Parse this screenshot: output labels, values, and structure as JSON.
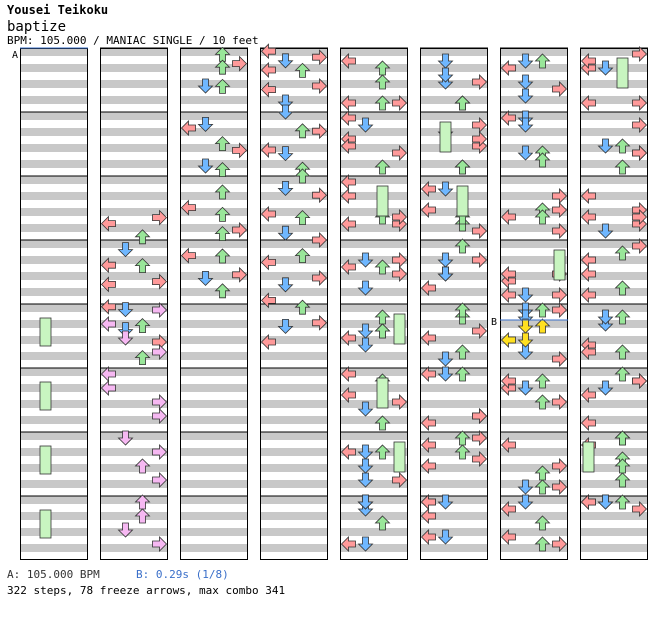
{
  "header": {
    "artist": "Yousei Teikoku",
    "title": "baptize",
    "info": "BPM: 105.000 / MANIAC SINGLE / 10 feet"
  },
  "markers": {
    "a": "A",
    "b": "B"
  },
  "footer": {
    "bpm_a": "A: 105.000 BPM",
    "bpm_b": "B: 0.29s (1/8)",
    "summary": "322 steps, 78 freeze arrows, max combo 341"
  },
  "colors": {
    "left": "#ff9a9a",
    "down": "#6fb7ff",
    "up": "#99e699",
    "right": "#ff9a9a",
    "freeze_body": "#c8f5c0",
    "shock": "#ffe020",
    "pink": "#f6b8f2",
    "stripe": "#c8c8c8",
    "bpm_b": "#3a6fc9"
  },
  "chart_data": {
    "type": "step-chart",
    "lanes": [
      "left",
      "down",
      "up",
      "right"
    ],
    "columns": 8,
    "measures_per_column": 8,
    "notes": [
      [
        1,
        0,
        5.3,
        3
      ],
      [
        1,
        1,
        5.3,
        0
      ],
      [
        1,
        0,
        5.9,
        2
      ],
      [
        1,
        0,
        6.3,
        1
      ],
      [
        1,
        1,
        6.6,
        0
      ],
      [
        1,
        0,
        6.8,
        2
      ],
      [
        1,
        1,
        7.2,
        0
      ],
      [
        1,
        0,
        7.3,
        3
      ],
      [
        1,
        2,
        7.8,
        1
      ],
      [
        1,
        1,
        7.9,
        0
      ],
      [
        1,
        2,
        8.3,
        2
      ],
      [
        1,
        0,
        8.8,
        1
      ],
      [
        1,
        1,
        9.0,
        3
      ],
      [
        1,
        2,
        9.3,
        2
      ],
      [
        2,
        0,
        0.2,
        2
      ],
      [
        2,
        1,
        0.3,
        3
      ],
      [
        2,
        0,
        0.6,
        2
      ],
      [
        2,
        1,
        1.0,
        1
      ],
      [
        2,
        0,
        1.2,
        2
      ],
      [
        2,
        1,
        2.2,
        1
      ],
      [
        2,
        0,
        2.5,
        0
      ],
      [
        2,
        1,
        2.8,
        2
      ],
      [
        2,
        0,
        3.2,
        3
      ],
      [
        2,
        1,
        3.5,
        1
      ],
      [
        2,
        0,
        3.8,
        2
      ],
      [
        2,
        0,
        4.5,
        2
      ],
      [
        2,
        1,
        4.8,
        0
      ],
      [
        2,
        0,
        5.2,
        2
      ],
      [
        2,
        1,
        5.5,
        3
      ],
      [
        2,
        0,
        5.8,
        2
      ],
      [
        2,
        1,
        6.3,
        0
      ],
      [
        2,
        0,
        6.5,
        2
      ],
      [
        2,
        1,
        6.9,
        3
      ],
      [
        2,
        0,
        7.2,
        1
      ],
      [
        2,
        1,
        7.4,
        2
      ],
      [
        3,
        0,
        0.1,
        0
      ],
      [
        3,
        1,
        0.1,
        3
      ],
      [
        3,
        0,
        0.4,
        1
      ],
      [
        3,
        1,
        0.5,
        0
      ],
      [
        3,
        0,
        0.7,
        2
      ],
      [
        3,
        1,
        1.0,
        3
      ],
      [
        3,
        0,
        1.3,
        0
      ],
      [
        3,
        1,
        1.5,
        1
      ],
      [
        3,
        0,
        2.0,
        1
      ],
      [
        3,
        1,
        2.4,
        2
      ],
      [
        3,
        0,
        2.6,
        3
      ],
      [
        3,
        1,
        3.0,
        0
      ],
      [
        3,
        0,
        3.3,
        1
      ],
      [
        3,
        1,
        3.6,
        2
      ],
      [
        3,
        0,
        4.0,
        2
      ],
      [
        3,
        1,
        4.2,
        1
      ],
      [
        3,
        0,
        4.6,
        3
      ],
      [
        3,
        1,
        5.0,
        0
      ],
      [
        3,
        0,
        5.3,
        2
      ],
      [
        3,
        1,
        5.6,
        1
      ],
      [
        3,
        0,
        6.0,
        3
      ],
      [
        3,
        1,
        6.3,
        2
      ],
      [
        3,
        0,
        6.7,
        0
      ],
      [
        3,
        1,
        7.0,
        3
      ],
      [
        3,
        0,
        7.4,
        1
      ],
      [
        3,
        1,
        7.7,
        0
      ],
      [
        3,
        0,
        8.1,
        2
      ],
      [
        3,
        1,
        8.4,
        3
      ],
      [
        3,
        0,
        8.7,
        1
      ],
      [
        3,
        1,
        9.0,
        0
      ]
    ]
  }
}
